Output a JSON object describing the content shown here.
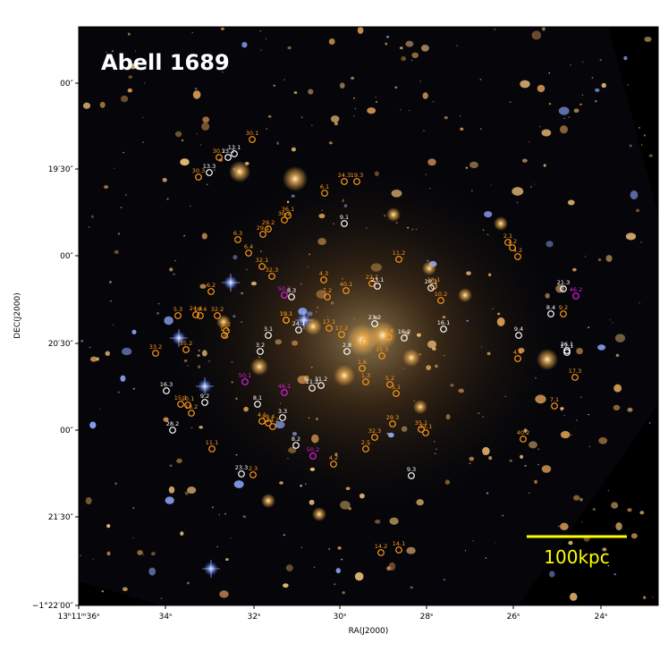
{
  "figure": {
    "title": "Abell 1689",
    "scale_bar_label": "100kpc",
    "xlabel": "RA(J2000)",
    "ylabel": "DEC(J2000)",
    "colors": {
      "background_sky": "#050508",
      "frame_black": "#000000",
      "orange": "#ff9a1a",
      "white": "#ffffff",
      "magenta": "#e020e0",
      "scale_bar": "#ffff00"
    }
  },
  "axes": {
    "x_ticks": [
      "13ʰ11ᵐ36ˢ",
      "34ˢ",
      "32ˢ",
      "30ˢ",
      "28ˢ",
      "26ˢ",
      "24ˢ"
    ],
    "y_ticks": [
      "00″",
      "19′30″",
      "00″",
      "20′30″",
      "00″",
      "21′30″",
      "−1°22′00″"
    ]
  },
  "images": [
    {
      "label": "30.1",
      "c": "orange"
    },
    {
      "label": "30.2",
      "c": "orange"
    },
    {
      "label": "13.1",
      "c": "white"
    },
    {
      "label": "13.2",
      "c": "white"
    },
    {
      "label": "13.3",
      "c": "white"
    },
    {
      "label": "30.3",
      "c": "orange"
    },
    {
      "label": "24.3",
      "c": "orange"
    },
    {
      "label": "19.3",
      "c": "orange"
    },
    {
      "label": "6.1",
      "c": "orange"
    },
    {
      "label": "36.1",
      "c": "orange"
    },
    {
      "label": "36.2",
      "c": "orange"
    },
    {
      "label": "29.1",
      "c": "orange"
    },
    {
      "label": "29.2",
      "c": "orange"
    },
    {
      "label": "9.1",
      "c": "white"
    },
    {
      "label": "6.3",
      "c": "orange"
    },
    {
      "label": "6.4",
      "c": "orange"
    },
    {
      "label": "11.2",
      "c": "orange"
    },
    {
      "label": "2.1",
      "c": "orange"
    },
    {
      "label": "2.2",
      "c": "orange"
    },
    {
      "label": "4.2",
      "c": "orange"
    },
    {
      "label": "32.1",
      "c": "orange"
    },
    {
      "label": "32.3",
      "c": "orange"
    },
    {
      "label": "6.2",
      "c": "orange"
    },
    {
      "label": "4.3",
      "c": "orange"
    },
    {
      "label": "22.1",
      "c": "orange"
    },
    {
      "label": "23.1",
      "c": "white"
    },
    {
      "label": "18.1",
      "c": "orange"
    },
    {
      "label": "28.1",
      "c": "white"
    },
    {
      "label": "10.2",
      "c": "orange"
    },
    {
      "label": "19.1",
      "c": "orange"
    },
    {
      "label": "21.3",
      "c": "white"
    },
    {
      "label": "46.2",
      "c": "magenta"
    },
    {
      "label": "50.3",
      "c": "magenta"
    },
    {
      "label": "8.3",
      "c": "white"
    },
    {
      "label": "7.2",
      "c": "orange"
    },
    {
      "label": "40.1",
      "c": "orange"
    },
    {
      "label": "5.3",
      "c": "orange"
    },
    {
      "label": "24.4",
      "c": "orange"
    },
    {
      "label": "19.4",
      "c": "orange"
    },
    {
      "label": "32.2",
      "c": "orange"
    },
    {
      "label": "8.4",
      "c": "white"
    },
    {
      "label": "9.2",
      "c": "orange"
    },
    {
      "label": "2.2",
      "c": "orange"
    },
    {
      "label": "1.1",
      "c": "orange"
    },
    {
      "label": "19.1",
      "c": "orange"
    },
    {
      "label": "3.1",
      "c": "white"
    },
    {
      "label": "24.1",
      "c": "white"
    },
    {
      "label": "17.1",
      "c": "orange"
    },
    {
      "label": "17.2",
      "c": "orange"
    },
    {
      "label": "23.2",
      "c": "white"
    },
    {
      "label": "16.2",
      "c": "white"
    },
    {
      "label": "16.1",
      "c": "white"
    },
    {
      "label": "9.4",
      "c": "white"
    },
    {
      "label": "33.2",
      "c": "orange"
    },
    {
      "label": "35.2",
      "c": "orange"
    },
    {
      "label": "3.2",
      "c": "white"
    },
    {
      "label": "2.8",
      "c": "white"
    },
    {
      "label": "4.5",
      "c": "orange"
    },
    {
      "label": "1.4",
      "c": "orange"
    },
    {
      "label": "35.3",
      "c": "orange"
    },
    {
      "label": "26.1",
      "c": "white"
    },
    {
      "label": "27.1",
      "c": "white"
    },
    {
      "label": "4.4",
      "c": "orange"
    },
    {
      "label": "1.6",
      "c": "orange"
    },
    {
      "label": "1.3",
      "c": "orange"
    },
    {
      "label": "50.1",
      "c": "magenta"
    },
    {
      "label": "46.1",
      "c": "magenta"
    },
    {
      "label": "21.2",
      "c": "white"
    },
    {
      "label": "31.2",
      "c": "white"
    },
    {
      "label": "5.2",
      "c": "orange"
    },
    {
      "label": "5.1",
      "c": "orange"
    },
    {
      "label": "17.3",
      "c": "orange"
    },
    {
      "label": "16.3",
      "c": "white"
    },
    {
      "label": "15.1",
      "c": "orange"
    },
    {
      "label": "20.1",
      "c": "orange"
    },
    {
      "label": "18.2",
      "c": "orange"
    },
    {
      "label": "9.2",
      "c": "white"
    },
    {
      "label": "8.1",
      "c": "white"
    },
    {
      "label": "7.1",
      "c": "orange"
    },
    {
      "label": "3.3",
      "c": "white"
    },
    {
      "label": "4.1",
      "c": "orange"
    },
    {
      "label": "19.4",
      "c": "orange"
    },
    {
      "label": "24.2",
      "c": "orange"
    },
    {
      "label": "29.3",
      "c": "orange"
    },
    {
      "label": "35.1",
      "c": "orange"
    },
    {
      "label": "33.1",
      "c": "orange"
    },
    {
      "label": "28.2",
      "c": "white"
    },
    {
      "label": "32.3",
      "c": "orange"
    },
    {
      "label": "40.2",
      "c": "orange"
    },
    {
      "label": "2.5",
      "c": "orange"
    },
    {
      "label": "8.2",
      "c": "white"
    },
    {
      "label": "11.1",
      "c": "orange"
    },
    {
      "label": "50.2",
      "c": "magenta"
    },
    {
      "label": "4.2",
      "c": "orange"
    },
    {
      "label": "23.3",
      "c": "white"
    },
    {
      "label": "2.3",
      "c": "orange"
    },
    {
      "label": "9.3",
      "c": "white"
    },
    {
      "label": "14.2",
      "c": "orange"
    },
    {
      "label": "14.1",
      "c": "orange"
    }
  ]
}
